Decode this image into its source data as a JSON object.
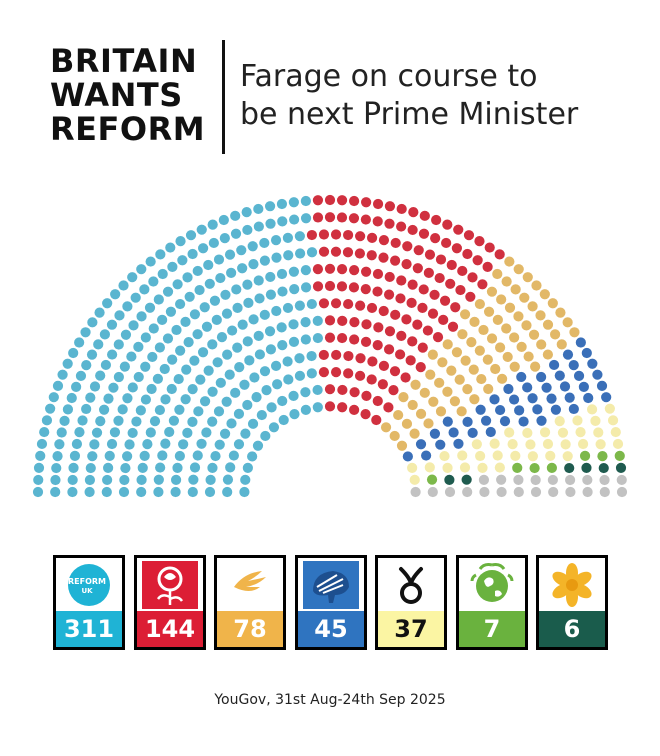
{
  "header": {
    "brand_lines": [
      "BRITAIN",
      "WANTS",
      "REFORM"
    ],
    "headline_lines": [
      "Farage on course to",
      "be next Prime Minister"
    ]
  },
  "chart_data": {
    "type": "parliament",
    "total_seats": 650,
    "parties": [
      {
        "seats": 311,
        "color": "#5ab5d0",
        "tile_color": "#1fb3d5",
        "count_text_color": "#ffffff",
        "icon": "reform-uk-logo-icon"
      },
      {
        "seats": 144,
        "color": "#d0303f",
        "tile_color": "#dc1e35",
        "count_text_color": "#ffffff",
        "icon": "labour-rose-icon"
      },
      {
        "seats": 78,
        "color": "#e2b867",
        "tile_color": "#f0b44a",
        "count_text_color": "#ffffff",
        "icon": "libdem-bird-icon"
      },
      {
        "seats": 45,
        "color": "#3a6fb8",
        "tile_color": "#2f74c0",
        "count_text_color": "#ffffff",
        "icon": "conservative-tree-icon"
      },
      {
        "seats": 37,
        "color": "#f4ebaa",
        "tile_color": "#fbf5a3",
        "count_text_color": "#111111",
        "icon": "snp-logo-icon"
      },
      {
        "seats": 7,
        "color": "#7cb84a",
        "tile_color": "#6ab23e",
        "count_text_color": "#ffffff",
        "icon": "green-earth-icon"
      },
      {
        "seats": 6,
        "color": "#1f5b4f",
        "tile_color": "#1a5c4c",
        "count_text_color": "#ffffff",
        "icon": "plaid-daffodil-icon"
      },
      {
        "seats": 22,
        "color": "#c2c2c2"
      }
    ]
  },
  "source": "YouGov, 31st Aug-24th Sep 2025"
}
